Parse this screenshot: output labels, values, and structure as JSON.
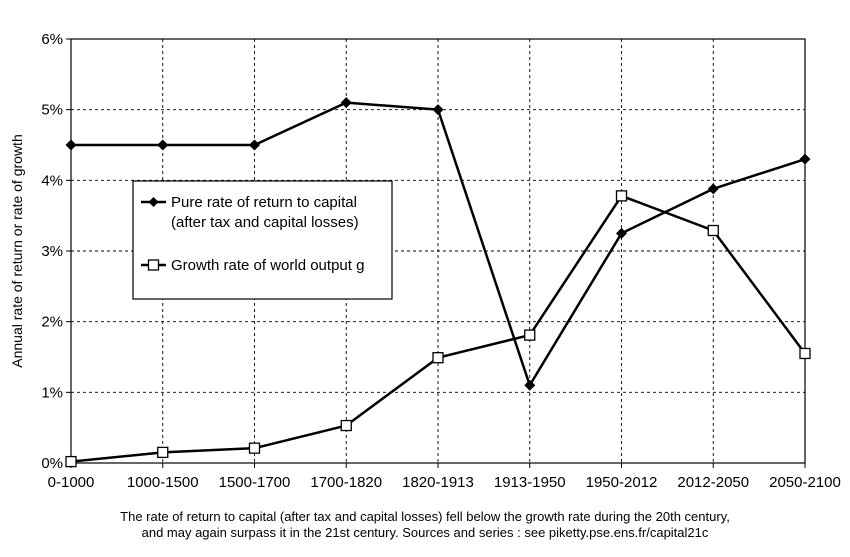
{
  "chart_data": {
    "type": "line",
    "title": "",
    "xlabel": "",
    "ylabel": "Annual rate of return or rate of growth",
    "ylim": [
      0,
      6
    ],
    "y_ticks": [
      "0%",
      "1%",
      "2%",
      "3%",
      "4%",
      "5%",
      "6%"
    ],
    "grid": true,
    "legend_position": "center-left",
    "categories": [
      "0-1000",
      "1000-1500",
      "1500-1700",
      "1700-1820",
      "1820-1913",
      "1913-1950",
      "1950-2012",
      "2012-2050",
      "2050-2100"
    ],
    "series": [
      {
        "name_line1": "Pure rate of return to capital",
        "name_line2": "(after tax and capital losses)",
        "marker": "filled-diamond",
        "values": [
          4.5,
          4.5,
          4.5,
          5.1,
          5.0,
          1.1,
          3.25,
          3.88,
          4.3
        ]
      },
      {
        "name_line1": "Growth rate of world output g",
        "name_line2": "",
        "marker": "open-square",
        "values": [
          0.02,
          0.15,
          0.21,
          0.53,
          1.49,
          1.81,
          3.78,
          3.29,
          1.55
        ]
      }
    ]
  },
  "caption": {
    "line1": "The rate of return to capital (after tax and capital losses) fell below the growth rate during the 20th century,",
    "line2": "and may again surpass it in the 21st century. Sources and series : see piketty.pse.ens.fr/capital21c"
  }
}
